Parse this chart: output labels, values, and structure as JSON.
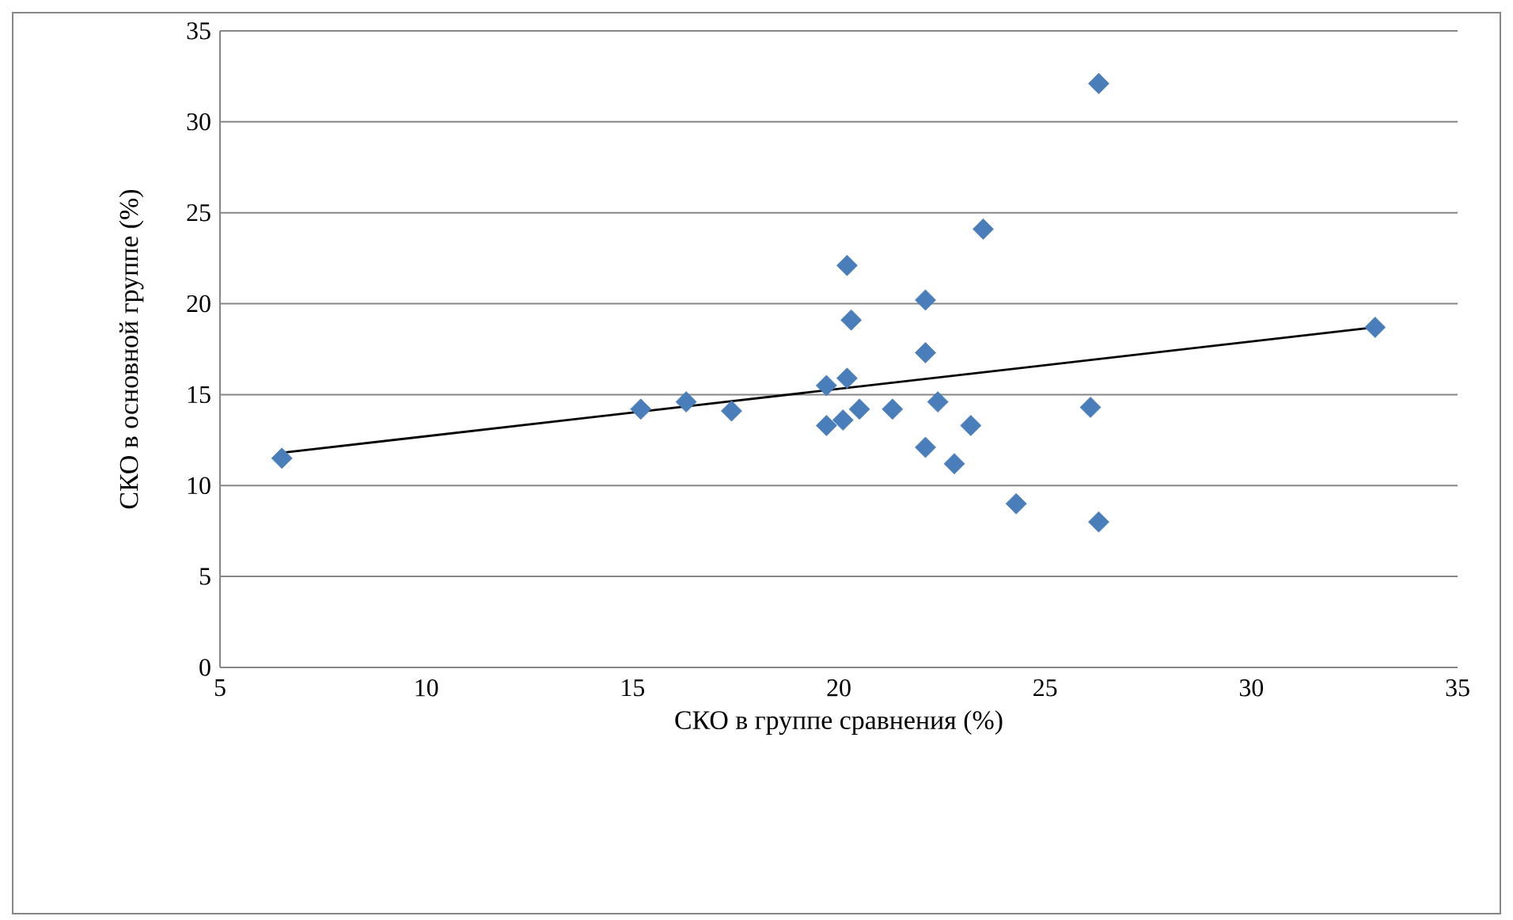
{
  "chart_data": {
    "type": "scatter",
    "xlabel": "СКО в группе сравнения (%)",
    "ylabel": "СКО в основной группе (%)",
    "xlim": [
      5,
      35
    ],
    "ylim": [
      0,
      35
    ],
    "xticks": [
      5,
      10,
      15,
      20,
      25,
      30,
      35
    ],
    "yticks": [
      0,
      5,
      10,
      15,
      20,
      25,
      30,
      35
    ],
    "grid": "y",
    "marker": "diamond",
    "series": [
      {
        "color": "#4a7ebb",
        "x": [
          6.5,
          15.2,
          16.3,
          17.4,
          19.7,
          20.2,
          19.7,
          20.1,
          20.5,
          20.2,
          20.3,
          21.3,
          22.1,
          22.1,
          22.1,
          22.4,
          22.8,
          23.2,
          23.5,
          24.3,
          26.1,
          26.3,
          26.3,
          33.0
        ],
        "values": [
          11.5,
          14.2,
          14.6,
          14.1,
          15.5,
          15.9,
          13.3,
          13.6,
          14.2,
          22.1,
          19.1,
          14.2,
          20.2,
          17.3,
          12.1,
          14.6,
          11.2,
          13.3,
          24.1,
          9.0,
          14.3,
          32.1,
          8.0,
          18.7
        ]
      },
      {
        "type": "line",
        "color": "#000000",
        "marker": "none",
        "x": [
          6.5,
          33.0
        ],
        "values": [
          11.8,
          18.7
        ]
      }
    ]
  }
}
